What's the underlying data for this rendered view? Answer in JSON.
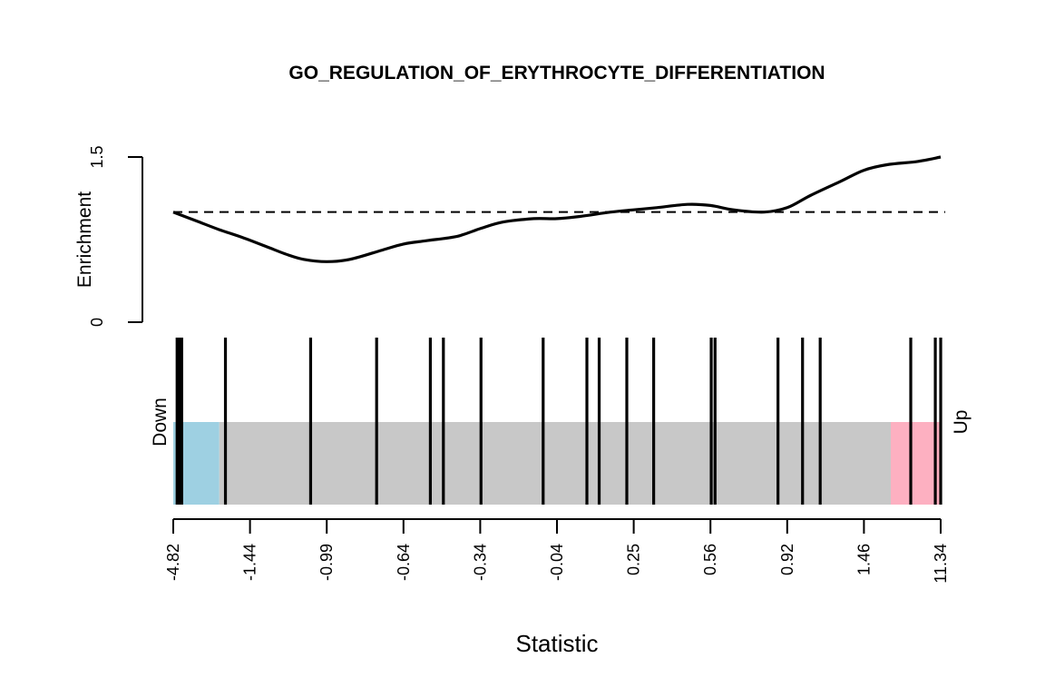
{
  "chart_data": {
    "type": "line",
    "title": "GO_REGULATION_OF_ERYTHROCYTE_DIFFERENTIATION",
    "xlabel": "Statistic",
    "ylabel": "Enrichment",
    "ylim": [
      0,
      1.5
    ],
    "yticks": [
      "0",
      "1.5"
    ],
    "reference_line": 1.0,
    "enrichment_curve": {
      "x": [
        0.0,
        0.03,
        0.06,
        0.09,
        0.12,
        0.15,
        0.17,
        0.2,
        0.23,
        0.27,
        0.3,
        0.33,
        0.37,
        0.4,
        0.43,
        0.47,
        0.5,
        0.53,
        0.57,
        0.6,
        0.63,
        0.67,
        0.7,
        0.73,
        0.77,
        0.8,
        0.83,
        0.87,
        0.9,
        0.93,
        0.97,
        1.0
      ],
      "y": [
        1.0,
        0.92,
        0.84,
        0.77,
        0.69,
        0.61,
        0.57,
        0.55,
        0.57,
        0.65,
        0.71,
        0.74,
        0.78,
        0.85,
        0.91,
        0.94,
        0.94,
        0.96,
        1.0,
        1.02,
        1.04,
        1.07,
        1.06,
        1.02,
        1.0,
        1.04,
        1.15,
        1.28,
        1.38,
        1.43,
        1.46,
        1.5
      ]
    },
    "barcode": {
      "rank_ticks": [
        "-4.82",
        "-1.44",
        "-0.99",
        "-0.64",
        "-0.34",
        "-0.04",
        "0.25",
        "0.56",
        "0.92",
        "1.46",
        "11.34"
      ],
      "gene_positions": [
        0.005,
        0.007,
        0.009,
        0.011,
        0.068,
        0.179,
        0.265,
        0.335,
        0.352,
        0.401,
        0.482,
        0.539,
        0.555,
        0.591,
        0.626,
        0.701,
        0.706,
        0.788,
        0.82,
        0.843,
        0.961,
        0.993,
        1.0
      ],
      "down_region_end": 0.06,
      "up_region_start": 0.935,
      "down_label": "Down",
      "up_label": "Up",
      "colors": {
        "down": "#9ED0E2",
        "middle": "#C8C8C8",
        "up": "#FDB0C1",
        "bars": "#000000"
      }
    }
  }
}
